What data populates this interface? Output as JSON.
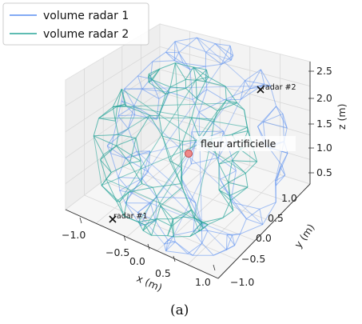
{
  "chart_data": {
    "type": "3d-wireframe",
    "xlabel": "x (m)",
    "ylabel": "y (m)",
    "zlabel": "z (m)",
    "xlim": [
      -1.2,
      1.1
    ],
    "ylim": [
      -1.1,
      1.1
    ],
    "zlim": [
      0.4,
      2.6
    ],
    "xticks": [
      "−1.0",
      "−0.5",
      "0.0",
      "0.5",
      "1.0"
    ],
    "yticks": [
      "−1.0",
      "−0.5",
      "0.0",
      "0.5",
      "1.0"
    ],
    "zticks": [
      "0.5",
      "1.0",
      "1.5",
      "2.0",
      "2.5"
    ],
    "legend_position": "top-left",
    "series": [
      {
        "name": "volume radar 1",
        "color": "#5b8ff0"
      },
      {
        "name": "volume radar 2",
        "color": "#2aa59a"
      }
    ],
    "points": [
      {
        "label": "radar #1",
        "x": -0.9,
        "y": -0.8,
        "z": 0.5,
        "marker": "x",
        "color": "#111111"
      },
      {
        "label": "radar #2",
        "x": 0.9,
        "y": 0.8,
        "z": 2.0,
        "marker": "x",
        "color": "#111111"
      },
      {
        "label": "fleur artificielle",
        "x": 0.0,
        "y": 0.0,
        "z": 1.0,
        "marker": "circle",
        "color": "#ef8a8a"
      }
    ],
    "caption": "(a)"
  }
}
